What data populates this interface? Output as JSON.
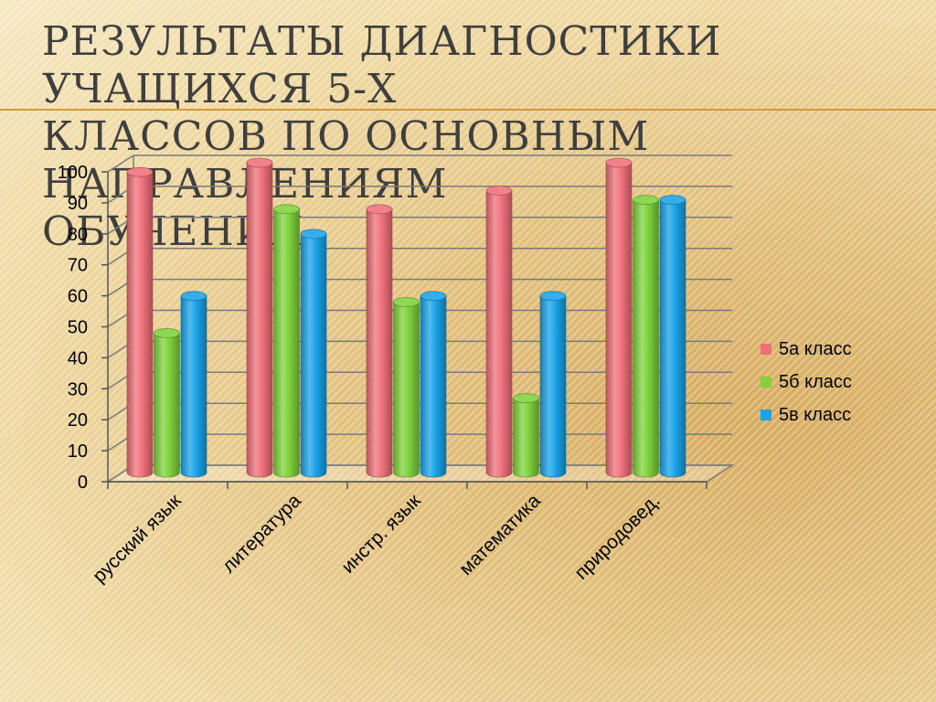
{
  "slide": {
    "title_lines": [
      "РЕЗУЛЬТАТЫ ДИАГНОСТИКИ УЧАЩИХСЯ 5-Х",
      "КЛАССОВ ПО ОСНОВНЫМ НАПРАВЛЕНИЯМ",
      "ОБУЧЕНИЯ"
    ]
  },
  "chart_data": {
    "type": "bar",
    "variant": "3d-cylinder",
    "categories": [
      "русский язык",
      "литература",
      "инстр. язык",
      "математика",
      "природовед."
    ],
    "series": [
      {
        "name": "5а класс",
        "color": "#f0707a",
        "values": [
          97,
          100,
          85,
          91,
          100
        ]
      },
      {
        "name": "5б класс",
        "color": "#7fd23c",
        "values": [
          45,
          85,
          55,
          24,
          88
        ]
      },
      {
        "name": "5в класс",
        "color": "#1aa3e8",
        "values": [
          57,
          77,
          57,
          57,
          88
        ]
      }
    ],
    "ylim": [
      0,
      100
    ],
    "yticks": [
      0,
      10,
      20,
      30,
      40,
      50,
      60,
      70,
      80,
      90,
      100
    ],
    "grid": true,
    "legend_position": "right"
  }
}
